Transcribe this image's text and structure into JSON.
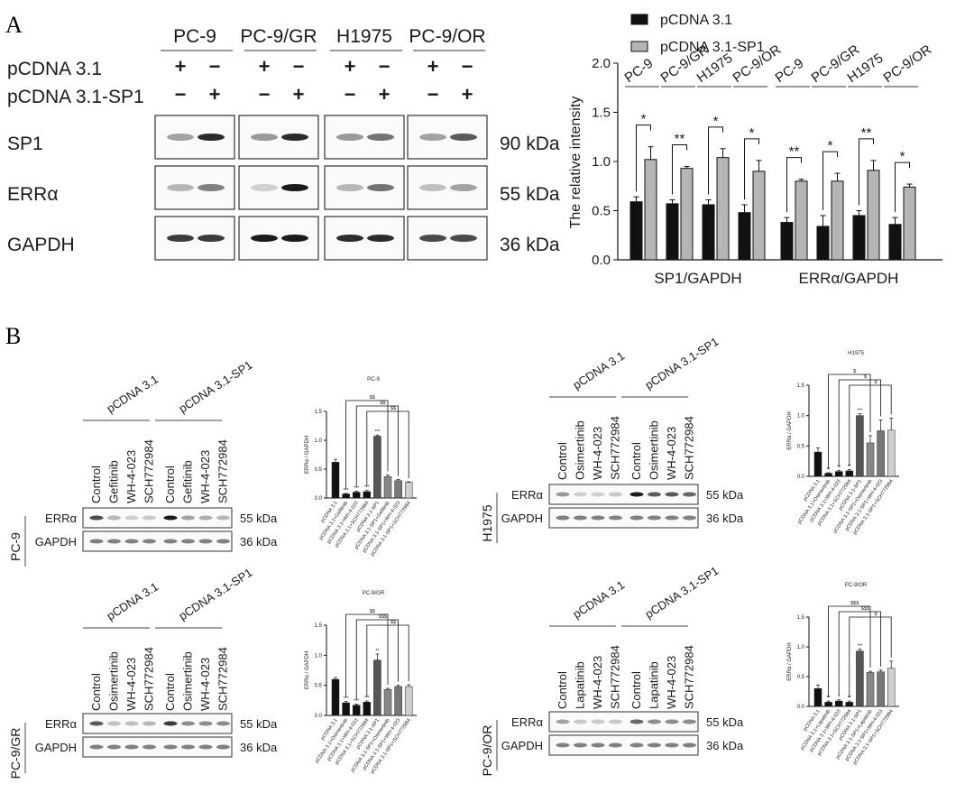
{
  "panel_labels": {
    "a": "A",
    "b": "B"
  },
  "panelA": {
    "cell_lines": [
      "PC-9",
      "PC-9/GR",
      "H1975",
      "PC-9/OR"
    ],
    "treatment_rows": [
      "pCDNA 3.1",
      "pCDNA 3.1-SP1"
    ],
    "plus": "+",
    "minus": "−",
    "signs": [
      [
        "+",
        "−"
      ],
      [
        "−",
        "+"
      ]
    ],
    "blots": [
      {
        "label": "SP1",
        "kda": "90 kDa",
        "intensity": [
          [
            0.45,
            0.9
          ],
          [
            0.5,
            0.9
          ],
          [
            0.5,
            0.65
          ],
          [
            0.45,
            0.75
          ]
        ]
      },
      {
        "label": "ERRα",
        "kda": "55 kDa",
        "intensity": [
          [
            0.35,
            0.6
          ],
          [
            0.2,
            0.95
          ],
          [
            0.35,
            0.65
          ],
          [
            0.3,
            0.45
          ]
        ]
      },
      {
        "label": "GAPDH",
        "kda": "36 kDa",
        "intensity": [
          [
            0.85,
            0.85
          ],
          [
            0.95,
            0.95
          ],
          [
            0.9,
            0.9
          ],
          [
            0.8,
            0.8
          ]
        ]
      }
    ]
  },
  "panelB_blots": [
    {
      "cell": "PC-9",
      "treatments": [
        "Control",
        "Gefitinib",
        "WH-4-023",
        "SCH772984",
        "Control",
        "Gefitinib",
        "WH-4-023",
        "SCH772984"
      ],
      "groups": [
        "pCDNA 3.1",
        "pCDNA 3.1-SP1"
      ],
      "rows": [
        {
          "label": "ERRα",
          "kda": "55 kDa",
          "intensity": [
            0.8,
            0.35,
            0.2,
            0.25,
            0.95,
            0.45,
            0.4,
            0.35
          ]
        },
        {
          "label": "GAPDH",
          "kda": "36 kDa",
          "intensity": [
            0.6,
            0.6,
            0.6,
            0.6,
            0.6,
            0.6,
            0.6,
            0.6
          ]
        }
      ]
    },
    {
      "cell": "H1975",
      "treatments": [
        "Control",
        "Osimertinib",
        "WH-4-023",
        "SCH772984",
        "Control",
        "Osimertinib",
        "WH-4-023",
        "SCH772984"
      ],
      "groups": [
        "pCDNA 3.1",
        "pCDNA 3.1-SP1"
      ],
      "rows": [
        {
          "label": "ERRα",
          "kda": "55 kDa",
          "intensity": [
            0.5,
            0.2,
            0.2,
            0.25,
            0.95,
            0.75,
            0.75,
            0.7
          ]
        },
        {
          "label": "GAPDH",
          "kda": "36 kDa",
          "intensity": [
            0.6,
            0.6,
            0.6,
            0.6,
            0.6,
            0.6,
            0.6,
            0.6
          ]
        }
      ]
    },
    {
      "cell": "PC-9/GR",
      "treatments": [
        "Control",
        "Osimertinib",
        "WH-4-023",
        "SCH772984",
        "Control",
        "Osimertinib",
        "WH-4-023",
        "SCH772984"
      ],
      "groups": [
        "pCDNA 3.1",
        "pCDNA 3.1-SP1"
      ],
      "rows": [
        {
          "label": "ERRα",
          "kda": "55 kDa",
          "intensity": [
            0.75,
            0.3,
            0.3,
            0.35,
            0.85,
            0.55,
            0.55,
            0.55
          ]
        },
        {
          "label": "GAPDH",
          "kda": "36 kDa",
          "intensity": [
            0.6,
            0.6,
            0.6,
            0.6,
            0.6,
            0.6,
            0.6,
            0.6
          ]
        }
      ]
    },
    {
      "cell": "PC-9/OR",
      "treatments": [
        "Control",
        "Lapatinib",
        "WH-4-023",
        "SCH772984",
        "Control",
        "Lapatinib",
        "WH-4-023",
        "SCH772984"
      ],
      "groups": [
        "pCDNA 3.1",
        "pCDNA 3.1-SP1"
      ],
      "rows": [
        {
          "label": "ERRα",
          "kda": "55 kDa",
          "intensity": [
            0.45,
            0.25,
            0.25,
            0.25,
            0.7,
            0.55,
            0.55,
            0.55
          ]
        },
        {
          "label": "GAPDH",
          "kda": "36 kDa",
          "intensity": [
            0.6,
            0.6,
            0.6,
            0.6,
            0.6,
            0.6,
            0.6,
            0.6
          ]
        }
      ]
    }
  ],
  "chart_data": [
    {
      "type": "bar",
      "id": "A-main",
      "ylabel": "The relative intensity",
      "ylim": [
        0,
        2.0
      ],
      "yticks": [
        "0.0",
        "0.5",
        "1.0",
        "1.5",
        "2.0"
      ],
      "ytick_values": [
        0,
        0.5,
        1.0,
        1.5,
        2.0
      ],
      "legend": {
        "placement": "top",
        "entries": [
          "pCDNA 3.1",
          "pCDNA 3.1-SP1"
        ]
      },
      "colors": {
        "pCDNA 3.1": "#111111",
        "pCDNA 3.1-SP1": "#b5b5b5"
      },
      "groups": [
        {
          "label": "SP1/GAPDH",
          "categories": [
            "PC-9",
            "PC-9/GR",
            "H1975",
            "PC-9/OR"
          ],
          "series": [
            {
              "name": "pCDNA 3.1",
              "values": [
                0.59,
                0.57,
                0.56,
                0.48
              ],
              "errors": [
                0.05,
                0.04,
                0.05,
                0.08
              ]
            },
            {
              "name": "pCDNA 3.1-SP1",
              "values": [
                1.02,
                0.93,
                1.04,
                0.9
              ],
              "errors": [
                0.13,
                0.02,
                0.09,
                0.11
              ]
            }
          ],
          "significance": [
            "*",
            "**",
            "*",
            "*"
          ]
        },
        {
          "label": "ERRα/GAPDH",
          "categories": [
            "PC-9",
            "PC-9/GR",
            "H1975",
            "PC-9/OR"
          ],
          "series": [
            {
              "name": "pCDNA 3.1",
              "values": [
                0.38,
                0.34,
                0.45,
                0.36
              ],
              "errors": [
                0.05,
                0.11,
                0.05,
                0.07
              ]
            },
            {
              "name": "pCDNA 3.1-SP1",
              "values": [
                0.8,
                0.8,
                0.91,
                0.74
              ],
              "errors": [
                0.02,
                0.08,
                0.1,
                0.03
              ]
            }
          ],
          "significance": [
            "**",
            "*",
            "**",
            "*"
          ]
        }
      ]
    },
    {
      "type": "bar",
      "id": "B-PC-9",
      "title": "PC-9",
      "ylabel": "ERRα / GAPDH",
      "ylim": [
        0,
        1.5
      ],
      "yticks": [
        "0.0",
        "0.5",
        "1.0",
        "1.5"
      ],
      "ytick_values": [
        0,
        0.5,
        1.0,
        1.5
      ],
      "categories": [
        "pCDNA 3.1",
        "pCDNA 3.1+Gefitinib",
        "pCDNA 3.1+WH-4-023",
        "pCDNA 3.1+SCH772984",
        "pCDNA 3.1-SP1",
        "pCDNA 3.1-SP1+Gefitinib",
        "pCDNA 3.1-SP1+WH-4-023",
        "pCDNA 3.1-SP1+SCH772984"
      ],
      "values": [
        0.62,
        0.07,
        0.1,
        0.11,
        1.07,
        0.37,
        0.3,
        0.27
      ],
      "errors": [
        0.05,
        0.01,
        0.02,
        0.02,
        0.02,
        0.03,
        0.02,
        0.01
      ],
      "bar_colors": [
        "#111111",
        "#111111",
        "#111111",
        "#111111",
        "#555555",
        "#888888",
        "#777777",
        "#cfcfcf"
      ],
      "stars": [
        "",
        "***",
        "***",
        "***",
        "***",
        "",
        "",
        ""
      ],
      "brackets": [
        {
          "from": 4,
          "to": 5,
          "label": "$$"
        },
        {
          "from": 4,
          "to": 6,
          "label": "$$"
        },
        {
          "from": 4,
          "to": 7,
          "label": "$$"
        }
      ]
    },
    {
      "type": "bar",
      "id": "B-H1975",
      "title": "H1975",
      "ylabel": "ERRα / GAPDH",
      "ylim": [
        0,
        1.5
      ],
      "yticks": [
        "0.0",
        "0.5",
        "1.0",
        "1.5"
      ],
      "ytick_values": [
        0,
        0.5,
        1.0,
        1.5
      ],
      "categories": [
        "pCDNA 3.1",
        "pCDNA 3.1+Osimertinib",
        "pCDNA 3.1+WH-4-023",
        "pCDNA 3.1+SCH772984",
        "pCDNA 3.1-SP1",
        "pCDNA 3.1-SP1+Osimertinib",
        "pCDNA 3.1-SP1+WH-4-023",
        "pCDNA 3.1-SP1+SCH772984"
      ],
      "values": [
        0.4,
        0.05,
        0.08,
        0.09,
        1.0,
        0.55,
        0.75,
        0.76
      ],
      "errors": [
        0.07,
        0.01,
        0.02,
        0.02,
        0.03,
        0.12,
        0.18,
        0.2
      ],
      "bar_colors": [
        "#111111",
        "#111111",
        "#111111",
        "#111111",
        "#555555",
        "#888888",
        "#777777",
        "#cfcfcf"
      ],
      "stars": [
        "",
        "**",
        "**",
        "**",
        "***",
        "",
        "",
        ""
      ],
      "brackets": [
        {
          "from": 4,
          "to": 5,
          "label": "$"
        },
        {
          "from": 4,
          "to": 6,
          "label": "$"
        },
        {
          "from": 4,
          "to": 7,
          "label": "$"
        }
      ]
    },
    {
      "type": "bar",
      "id": "B-PC-9/GR",
      "title": "PC-9/GR",
      "ylabel": "ERRα / GAPDH",
      "ylim": [
        0,
        1.5
      ],
      "yticks": [
        "0.0",
        "0.5",
        "1.0",
        "1.5"
      ],
      "ytick_values": [
        0,
        0.5,
        1.0,
        1.5
      ],
      "categories": [
        "pCDNA 3.1",
        "pCDNA 3.1+Osimertinib",
        "pCDNA 3.1+WH-4-023",
        "pCDNA 3.1+SCH772984",
        "pCDNA 3.1-SP1",
        "pCDNA 3.1-SP1+Osimertinib",
        "pCDNA 3.1-SP1+WH-4-023",
        "pCDNA 3.1-SP1+SCH772984"
      ],
      "values": [
        0.6,
        0.21,
        0.17,
        0.22,
        0.92,
        0.43,
        0.48,
        0.48
      ],
      "errors": [
        0.03,
        0.02,
        0.02,
        0.02,
        0.1,
        0.02,
        0.02,
        0.03
      ],
      "bar_colors": [
        "#111111",
        "#111111",
        "#111111",
        "#111111",
        "#555555",
        "#888888",
        "#777777",
        "#cfcfcf"
      ],
      "stars": [
        "",
        "***",
        "***",
        "***",
        "**",
        "",
        "",
        ""
      ],
      "brackets": [
        {
          "from": 4,
          "to": 5,
          "label": "$$"
        },
        {
          "from": 4,
          "to": 6,
          "label": "$$$"
        },
        {
          "from": 4,
          "to": 7,
          "label": "$$"
        }
      ]
    },
    {
      "type": "bar",
      "id": "B-PC-9/OR",
      "title": "PC-9/OR",
      "ylabel": "ERRα / GAPDH",
      "ylim": [
        0,
        1.5
      ],
      "yticks": [
        "0.0",
        "0.5",
        "1.0",
        "1.5"
      ],
      "ytick_values": [
        0,
        0.5,
        1.0,
        1.5
      ],
      "categories": [
        "pCDNA 3.1",
        "pCDNA 3.1+Lapatinib",
        "pCDNA 3.1+WH-4-023",
        "pCDNA 3.1+SCH772984",
        "pCDNA 3.1-SP1",
        "pCDNA 3.1-SP1+Lapatinib",
        "pCDNA 3.1-SP1+WH-4-023",
        "pCDNA 3.1-SP1+SCH772984"
      ],
      "values": [
        0.3,
        0.07,
        0.09,
        0.07,
        0.93,
        0.57,
        0.58,
        0.64
      ],
      "errors": [
        0.06,
        0.02,
        0.02,
        0.02,
        0.03,
        0.02,
        0.03,
        0.12
      ],
      "bar_colors": [
        "#111111",
        "#111111",
        "#111111",
        "#111111",
        "#555555",
        "#888888",
        "#777777",
        "#cfcfcf"
      ],
      "stars": [
        "",
        "**",
        "*",
        "**",
        "***",
        "",
        "",
        ""
      ],
      "brackets": [
        {
          "from": 4,
          "to": 5,
          "label": "$$$"
        },
        {
          "from": 4,
          "to": 6,
          "label": "$$$"
        },
        {
          "from": 4,
          "to": 7,
          "label": "$"
        }
      ]
    }
  ]
}
